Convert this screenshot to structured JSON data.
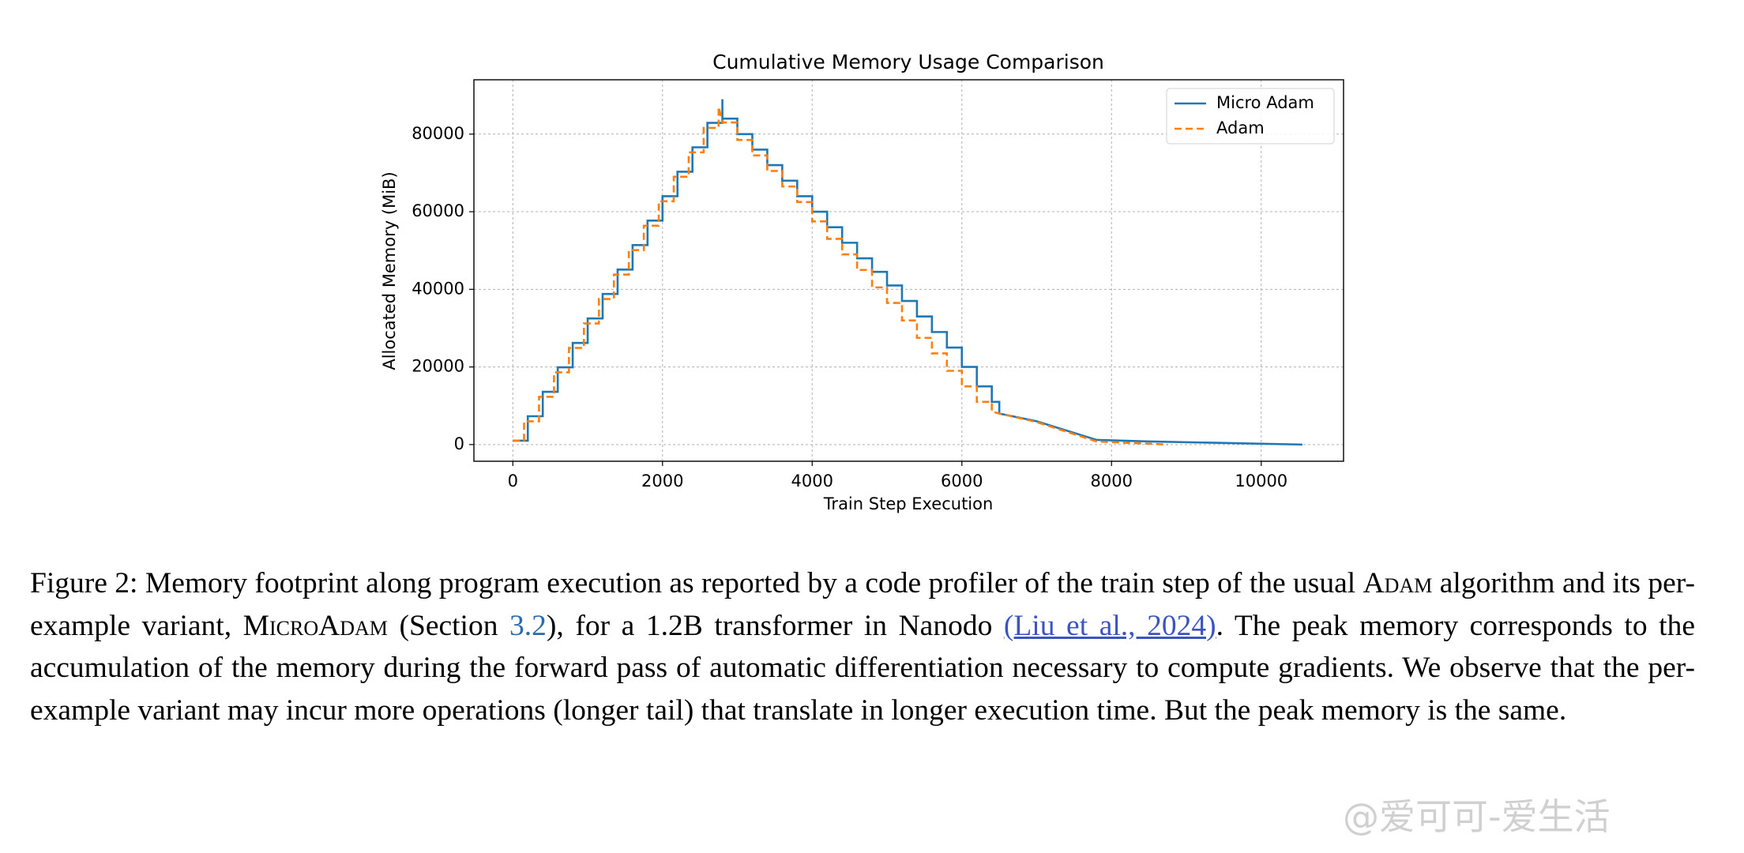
{
  "chart_data": {
    "type": "line",
    "title": "Cumulative Memory Usage Comparison",
    "x_label": "Train Step Execution",
    "y_label": "Allocated Memory (MiB)",
    "xlim": [
      -520,
      11100
    ],
    "ylim": [
      -4300,
      94000
    ],
    "xticks": [
      0,
      2000,
      4000,
      6000,
      8000,
      10000
    ],
    "yticks": [
      0,
      20000,
      40000,
      60000,
      80000
    ],
    "grid": true,
    "legend": "upper right",
    "series": [
      {
        "name": "Micro Adam",
        "color": "#1f77b4",
        "dash": "solid",
        "x": [
          0,
          200,
          200,
          400,
          400,
          600,
          600,
          800,
          800,
          1000,
          1000,
          1200,
          1200,
          1400,
          1400,
          1600,
          1600,
          1800,
          1800,
          2000,
          2000,
          2200,
          2200,
          2400,
          2400,
          2600,
          2600,
          2800,
          2800,
          2800,
          3000,
          3000,
          3200,
          3200,
          3400,
          3400,
          3600,
          3600,
          3800,
          3800,
          4000,
          4000,
          4200,
          4200,
          4400,
          4400,
          4600,
          4600,
          4800,
          4800,
          5000,
          5000,
          5200,
          5200,
          5400,
          5400,
          5600,
          5600,
          5800,
          5800,
          6000,
          6000,
          6200,
          6200,
          6400,
          6400,
          6500,
          6500,
          7000,
          7800,
          8500,
          10550
        ],
        "values": [
          1000,
          1000,
          7300,
          7300,
          13600,
          13600,
          19900,
          19900,
          26200,
          26200,
          32500,
          32500,
          38800,
          38800,
          45100,
          45100,
          51400,
          51400,
          57700,
          57700,
          64000,
          64000,
          70300,
          70300,
          76600,
          76600,
          82900,
          82900,
          89000,
          84000,
          84000,
          80000,
          80000,
          76000,
          76000,
          72000,
          72000,
          68000,
          68000,
          64000,
          64000,
          60000,
          60000,
          56000,
          56000,
          52000,
          52000,
          48000,
          48000,
          44500,
          44500,
          41000,
          41000,
          37000,
          37000,
          33000,
          33000,
          29000,
          29000,
          25000,
          25000,
          20000,
          20000,
          15000,
          15000,
          11000,
          11000,
          8000,
          6000,
          1200,
          800,
          0
        ]
      },
      {
        "name": "Adam",
        "color": "#ff7f0e",
        "dash": "dashed",
        "x": [
          0,
          150,
          150,
          350,
          350,
          550,
          550,
          750,
          750,
          950,
          950,
          1150,
          1150,
          1350,
          1350,
          1550,
          1550,
          1750,
          1750,
          1950,
          1950,
          2150,
          2150,
          2350,
          2350,
          2550,
          2550,
          2750,
          2750,
          2800,
          3000,
          3000,
          3200,
          3200,
          3400,
          3400,
          3600,
          3600,
          3800,
          3800,
          4000,
          4000,
          4200,
          4200,
          4400,
          4400,
          4600,
          4600,
          4800,
          4800,
          5000,
          5000,
          5200,
          5200,
          5400,
          5400,
          5600,
          5600,
          5800,
          5800,
          6000,
          6000,
          6200,
          6200,
          6400,
          6400,
          6500,
          7000,
          7800,
          8750
        ],
        "values": [
          1000,
          1000,
          6000,
          6000,
          12300,
          12300,
          18600,
          18600,
          24900,
          24900,
          31200,
          31200,
          37500,
          37500,
          43800,
          43800,
          50100,
          50100,
          56400,
          56400,
          62700,
          62700,
          69000,
          69000,
          75300,
          75300,
          81600,
          81600,
          87000,
          83000,
          83000,
          78500,
          78500,
          74500,
          74500,
          70500,
          70500,
          66500,
          66500,
          62500,
          62500,
          57500,
          57500,
          53000,
          53000,
          49000,
          49000,
          45000,
          45000,
          40500,
          40500,
          36500,
          36500,
          32000,
          32000,
          27500,
          27500,
          23500,
          23500,
          19000,
          19000,
          15000,
          15000,
          11000,
          11000,
          8500,
          8000,
          5800,
          800,
          0
        ]
      }
    ]
  },
  "caption": [
    "Figure 2: Memory footprint along program execution as reported by a code profiler of the train step of the usual ",
    "Adam",
    " algorithm and its per-example variant, ",
    "MicroAdam",
    " (Section ",
    "3.2",
    "), for a 1.2B transformer in Nanodo ",
    "(Liu et al., 2024)",
    ". The peak memory corresponds to the accumulation of the memory during the forward pass of automatic differentiation necessary to compute gradients. We observe that the per-example variant may incur more operations (longer tail) that translate in longer execution time. But the peak memory is the same."
  ],
  "watermark": "@爱可可-爱生活"
}
